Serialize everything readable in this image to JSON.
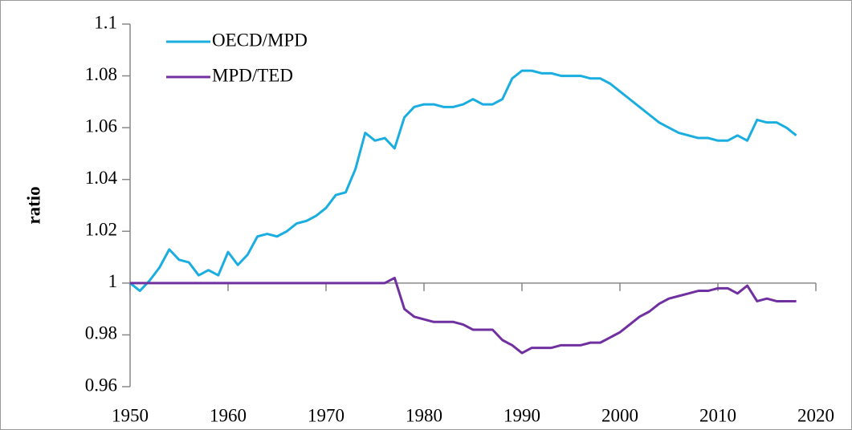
{
  "chart_data": {
    "type": "line",
    "y_label": "ratio",
    "x": [
      1950,
      1951,
      1952,
      1953,
      1954,
      1955,
      1956,
      1957,
      1958,
      1959,
      1960,
      1961,
      1962,
      1963,
      1964,
      1965,
      1966,
      1967,
      1968,
      1969,
      1970,
      1971,
      1972,
      1973,
      1974,
      1975,
      1976,
      1977,
      1978,
      1979,
      1980,
      1981,
      1982,
      1983,
      1984,
      1985,
      1986,
      1987,
      1988,
      1989,
      1990,
      1991,
      1992,
      1993,
      1994,
      1995,
      1996,
      1997,
      1998,
      1999,
      2000,
      2001,
      2002,
      2003,
      2004,
      2005,
      2006,
      2007,
      2008,
      2009,
      2010,
      2011,
      2012,
      2013,
      2014,
      2015,
      2016,
      2017,
      2018
    ],
    "series": [
      {
        "name": "OECD/MPD",
        "color": "#1aaee0",
        "values": [
          1.0,
          0.997,
          1.001,
          1.006,
          1.013,
          1.009,
          1.008,
          1.003,
          1.005,
          1.003,
          1.012,
          1.007,
          1.011,
          1.018,
          1.019,
          1.018,
          1.02,
          1.023,
          1.024,
          1.026,
          1.029,
          1.034,
          1.035,
          1.044,
          1.058,
          1.055,
          1.056,
          1.052,
          1.064,
          1.068,
          1.069,
          1.069,
          1.068,
          1.068,
          1.069,
          1.071,
          1.069,
          1.069,
          1.071,
          1.079,
          1.082,
          1.082,
          1.081,
          1.081,
          1.08,
          1.08,
          1.08,
          1.079,
          1.079,
          1.077,
          1.074,
          1.071,
          1.068,
          1.065,
          1.062,
          1.06,
          1.058,
          1.057,
          1.056,
          1.056,
          1.055,
          1.055,
          1.057,
          1.055,
          1.063,
          1.062,
          1.062,
          1.06,
          1.057
        ]
      },
      {
        "name": "MPD/TED",
        "color": "#7030a0",
        "values": [
          1.0,
          1.0,
          1.0,
          1.0,
          1.0,
          1.0,
          1.0,
          1.0,
          1.0,
          1.0,
          1.0,
          1.0,
          1.0,
          1.0,
          1.0,
          1.0,
          1.0,
          1.0,
          1.0,
          1.0,
          1.0,
          1.0,
          1.0,
          1.0,
          1.0,
          1.0,
          1.0,
          1.002,
          0.99,
          0.987,
          0.986,
          0.985,
          0.985,
          0.985,
          0.984,
          0.982,
          0.982,
          0.982,
          0.978,
          0.976,
          0.973,
          0.975,
          0.975,
          0.975,
          0.976,
          0.976,
          0.976,
          0.977,
          0.977,
          0.979,
          0.981,
          0.984,
          0.987,
          0.989,
          0.992,
          0.994,
          0.995,
          0.996,
          0.997,
          0.997,
          0.998,
          0.998,
          0.996,
          0.999,
          0.993,
          0.994,
          0.993,
          0.993,
          0.993
        ]
      }
    ],
    "xlim": [
      1950,
      2020
    ],
    "xticks": [
      1950,
      1960,
      1970,
      1980,
      1990,
      2000,
      2010,
      2020
    ],
    "ylim": [
      0.96,
      1.1
    ],
    "yticks": [
      0.96,
      0.98,
      1,
      1.02,
      1.04,
      1.06,
      1.08,
      1.1
    ],
    "legend": "top-left"
  }
}
